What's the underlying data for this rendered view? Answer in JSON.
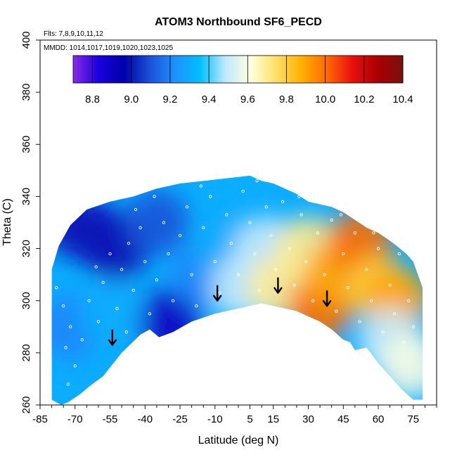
{
  "chart_data": {
    "type": "heatmap",
    "title": "ATOM3 Northbound SF6_PECD",
    "annotations": {
      "flights": "Flts: 7,8,9,10,11,12",
      "dates": "MMDD: 1014,1017,1019,1020,1023,1025"
    },
    "xlabel": "Latitude (deg N)",
    "ylabel": "Theta (C)",
    "xlim": [
      -85,
      85
    ],
    "ylim": [
      260,
      400
    ],
    "x_ticks": [
      -85,
      -70,
      -55,
      -40,
      -25,
      -10,
      5,
      15,
      30,
      45,
      60,
      75
    ],
    "x_minor_step": 5,
    "y_ticks": [
      260,
      280,
      300,
      320,
      340,
      360,
      380,
      400
    ],
    "colorbar": {
      "min": 8.7,
      "max": 10.4,
      "ticks": [
        8.8,
        9.0,
        9.2,
        9.4,
        9.6,
        9.8,
        10.0,
        10.2,
        10.4
      ],
      "colors": [
        "#8a2be2",
        "#1a00e0",
        "#0000a8",
        "#1a4fd6",
        "#1e90ff",
        "#00bfff",
        "#bfe8ff",
        "#ffffe0",
        "#ffe066",
        "#ffb000",
        "#ff6a00",
        "#e81010",
        "#aa0000",
        "#7a1010"
      ]
    },
    "field_envelope": {
      "top": [
        [
          -80,
          312
        ],
        [
          -77,
          321
        ],
        [
          -72,
          329
        ],
        [
          -65,
          335
        ],
        [
          -55,
          338
        ],
        [
          -45,
          340
        ],
        [
          -35,
          343
        ],
        [
          -25,
          345
        ],
        [
          -15,
          346
        ],
        [
          -5,
          347
        ],
        [
          5,
          348
        ],
        [
          10,
          346
        ],
        [
          15,
          345
        ],
        [
          20,
          343
        ],
        [
          25,
          341
        ],
        [
          30,
          338
        ],
        [
          35,
          337
        ],
        [
          40,
          336
        ],
        [
          45,
          334
        ],
        [
          50,
          331
        ],
        [
          55,
          328
        ],
        [
          60,
          326
        ],
        [
          65,
          323
        ],
        [
          68,
          321
        ],
        [
          72,
          318
        ],
        [
          75,
          315
        ],
        [
          77,
          310
        ],
        [
          79,
          305
        ]
      ],
      "bottom": [
        [
          79,
          262
        ],
        [
          75,
          262
        ],
        [
          70,
          266
        ],
        [
          66,
          270
        ],
        [
          60,
          276
        ],
        [
          55,
          282
        ],
        [
          50,
          281
        ],
        [
          48,
          284
        ],
        [
          45,
          285
        ],
        [
          40,
          289
        ],
        [
          35,
          292
        ],
        [
          30,
          294
        ],
        [
          25,
          296
        ],
        [
          20,
          297
        ],
        [
          10,
          299
        ],
        [
          0,
          297
        ],
        [
          -10,
          295
        ],
        [
          -20,
          292
        ],
        [
          -28,
          288
        ],
        [
          -34,
          286
        ],
        [
          -38,
          289
        ],
        [
          -42,
          287
        ],
        [
          -50,
          280
        ],
        [
          -58,
          271
        ],
        [
          -64,
          267
        ],
        [
          -68,
          264
        ],
        [
          -73,
          261
        ],
        [
          -76,
          260
        ],
        [
          -80,
          262
        ]
      ]
    },
    "field_blobs": [
      {
        "lat": -60,
        "theta": 325,
        "value": 8.9
      },
      {
        "lat": -72,
        "theta": 330,
        "value": 9.0
      },
      {
        "lat": -52,
        "theta": 320,
        "value": 9.0
      },
      {
        "lat": -35,
        "theta": 330,
        "value": 9.1
      },
      {
        "lat": -30,
        "theta": 292,
        "value": 8.9
      },
      {
        "lat": -72,
        "theta": 290,
        "value": 9.2
      },
      {
        "lat": -55,
        "theta": 295,
        "value": 9.3
      },
      {
        "lat": -15,
        "theta": 310,
        "value": 9.2
      },
      {
        "lat": -5,
        "theta": 320,
        "value": 9.3
      },
      {
        "lat": 2,
        "theta": 305,
        "value": 9.5
      },
      {
        "lat": 12,
        "theta": 320,
        "value": 9.5
      },
      {
        "lat": 18,
        "theta": 305,
        "value": 9.7
      },
      {
        "lat": 30,
        "theta": 320,
        "value": 9.7
      },
      {
        "lat": 35,
        "theta": 297,
        "value": 10.0
      },
      {
        "lat": 42,
        "theta": 310,
        "value": 9.9
      },
      {
        "lat": 52,
        "theta": 322,
        "value": 10.0
      },
      {
        "lat": 60,
        "theta": 305,
        "value": 9.8
      },
      {
        "lat": 68,
        "theta": 300,
        "value": 9.9
      },
      {
        "lat": 65,
        "theta": 285,
        "value": 9.5
      },
      {
        "lat": 74,
        "theta": 275,
        "value": 9.6
      }
    ],
    "sample_points": [
      [
        -78,
        305
      ],
      [
        -75,
        298
      ],
      [
        -72,
        290
      ],
      [
        -74,
        282
      ],
      [
        -70,
        275
      ],
      [
        -73,
        268
      ],
      [
        -67,
        285
      ],
      [
        -64,
        300
      ],
      [
        -61,
        313
      ],
      [
        -58,
        307
      ],
      [
        -55,
        318
      ],
      [
        -52,
        297
      ],
      [
        -50,
        312
      ],
      [
        -47,
        322
      ],
      [
        -45,
        304
      ],
      [
        -42,
        328
      ],
      [
        -40,
        315
      ],
      [
        -38,
        295
      ],
      [
        -35,
        308
      ],
      [
        -32,
        330
      ],
      [
        -30,
        318
      ],
      [
        -28,
        300
      ],
      [
        -25,
        325
      ],
      [
        -22,
        336
      ],
      [
        -20,
        310
      ],
      [
        -18,
        298
      ],
      [
        -15,
        328
      ],
      [
        -12,
        340
      ],
      [
        -10,
        315
      ],
      [
        -8,
        303
      ],
      [
        -5,
        333
      ],
      [
        -3,
        322
      ],
      [
        0,
        310
      ],
      [
        2,
        342
      ],
      [
        5,
        330
      ],
      [
        7,
        318
      ],
      [
        9,
        304
      ],
      [
        12,
        336
      ],
      [
        14,
        325
      ],
      [
        16,
        312
      ],
      [
        19,
        338
      ],
      [
        22,
        320
      ],
      [
        24,
        306
      ],
      [
        27,
        333
      ],
      [
        29,
        315
      ],
      [
        32,
        300
      ],
      [
        34,
        326
      ],
      [
        37,
        310
      ],
      [
        40,
        331
      ],
      [
        42,
        296
      ],
      [
        45,
        318
      ],
      [
        47,
        305
      ],
      [
        50,
        326
      ],
      [
        52,
        292
      ],
      [
        55,
        312
      ],
      [
        57,
        300
      ],
      [
        60,
        320
      ],
      [
        62,
        288
      ],
      [
        65,
        306
      ],
      [
        67,
        295
      ],
      [
        69,
        318
      ],
      [
        71,
        284
      ],
      [
        73,
        300
      ],
      [
        75,
        290
      ],
      [
        -60,
        292
      ],
      [
        -48,
        288
      ],
      [
        -44,
        335
      ],
      [
        -36,
        340
      ],
      [
        -16,
        344
      ],
      [
        8,
        346
      ],
      [
        26,
        340
      ],
      [
        44,
        333
      ],
      [
        58,
        326
      ]
    ],
    "arrows": [
      [
        -54,
        283
      ],
      [
        -9,
        300
      ],
      [
        17,
        303
      ],
      [
        38,
        298
      ]
    ]
  }
}
